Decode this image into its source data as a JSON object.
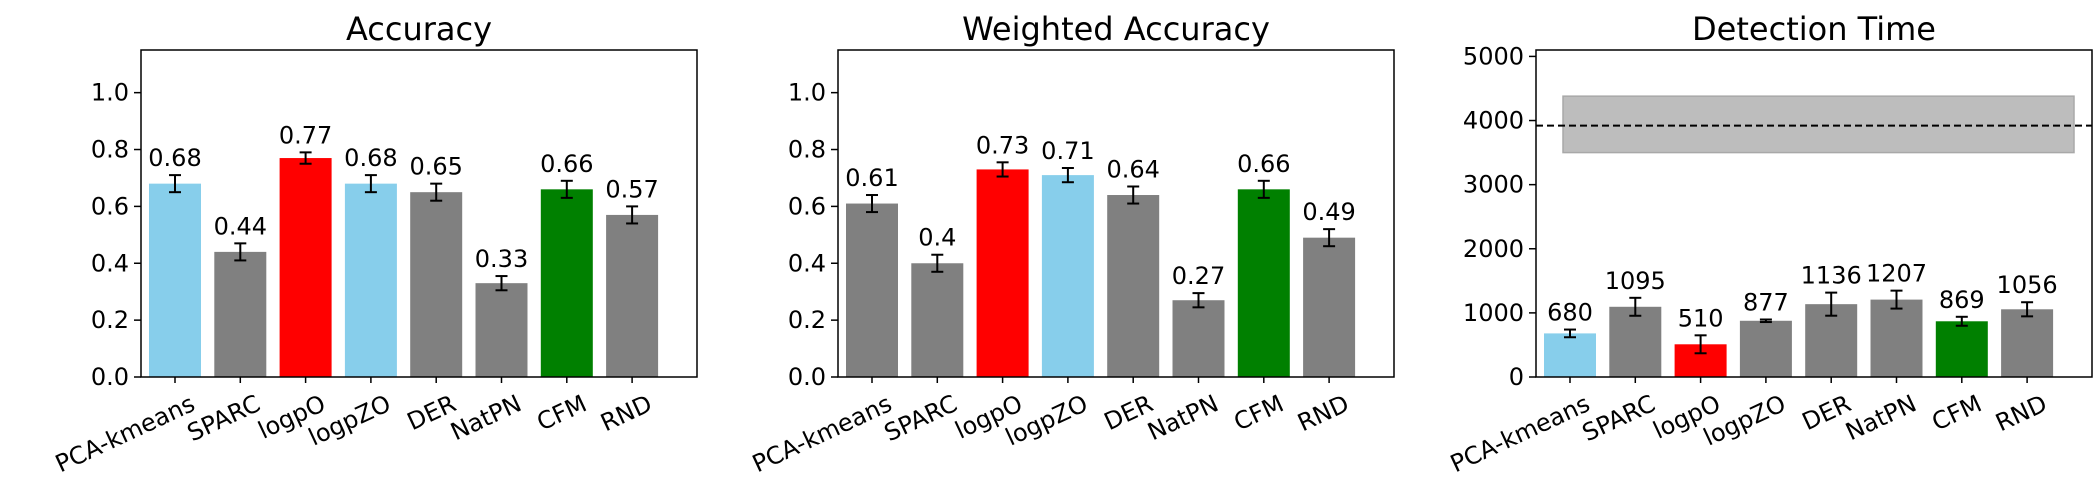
{
  "colors": {
    "default": "#808080",
    "highlight_blue": "#87ceeb",
    "highlight_red": "#ff0000",
    "highlight_green": "#008000",
    "band": "#bdbdbd"
  },
  "chart_data": [
    {
      "type": "bar",
      "title": "Accuracy",
      "categories": [
        "PCA-kmeans",
        "SPARC",
        "logpO",
        "logpZO",
        "DER",
        "NatPN",
        "CFM",
        "RND"
      ],
      "values": [
        0.68,
        0.44,
        0.77,
        0.68,
        0.65,
        0.33,
        0.66,
        0.57
      ],
      "data_labels": [
        "0.68",
        "0.44",
        "0.77",
        "0.68",
        "0.65",
        "0.33",
        "0.66",
        "0.57"
      ],
      "errors": [
        0.03,
        0.03,
        0.02,
        0.03,
        0.03,
        0.025,
        0.03,
        0.03
      ],
      "bar_colors": [
        "highlight_blue",
        "default",
        "highlight_red",
        "highlight_blue",
        "default",
        "default",
        "highlight_green",
        "default"
      ],
      "ylim": [
        0,
        1.15
      ],
      "yticks": [
        0.0,
        0.2,
        0.4,
        0.6,
        0.8,
        1.0
      ],
      "ytick_labels": [
        "0.0",
        "0.2",
        "0.4",
        "0.6",
        "0.8",
        "1.0"
      ],
      "grid": false
    },
    {
      "type": "bar",
      "title": "Weighted Accuracy",
      "categories": [
        "PCA-kmeans",
        "SPARC",
        "logpO",
        "logpZO",
        "DER",
        "NatPN",
        "CFM",
        "RND"
      ],
      "values": [
        0.61,
        0.4,
        0.73,
        0.71,
        0.64,
        0.27,
        0.66,
        0.49
      ],
      "data_labels": [
        "0.61",
        "0.4",
        "0.73",
        "0.71",
        "0.64",
        "0.27",
        "0.66",
        "0.49"
      ],
      "errors": [
        0.03,
        0.03,
        0.025,
        0.025,
        0.03,
        0.025,
        0.03,
        0.03
      ],
      "bar_colors": [
        "default",
        "default",
        "highlight_red",
        "highlight_blue",
        "default",
        "default",
        "highlight_green",
        "default"
      ],
      "ylim": [
        0,
        1.15
      ],
      "yticks": [
        0.0,
        0.2,
        0.4,
        0.6,
        0.8,
        1.0
      ],
      "ytick_labels": [
        "0.0",
        "0.2",
        "0.4",
        "0.6",
        "0.8",
        "1.0"
      ],
      "grid": false
    },
    {
      "type": "bar",
      "title": "Detection Time",
      "categories": [
        "PCA-kmeans",
        "SPARC",
        "logpO",
        "logpZO",
        "DER",
        "NatPN",
        "CFM",
        "RND"
      ],
      "values": [
        680,
        1095,
        510,
        877,
        1136,
        1207,
        869,
        1056
      ],
      "data_labels": [
        "680",
        "1095",
        "510",
        "877",
        "1136",
        "1207",
        "869",
        "1056"
      ],
      "errors": [
        60,
        140,
        140,
        20,
        180,
        140,
        70,
        110
      ],
      "bar_colors": [
        "highlight_blue",
        "default",
        "highlight_red",
        "default",
        "default",
        "default",
        "highlight_green",
        "default"
      ],
      "ylim": [
        0,
        5100
      ],
      "yticks": [
        0,
        1000,
        2000,
        3000,
        4000,
        5000
      ],
      "ytick_labels": [
        "0",
        "1000",
        "2000",
        "3000",
        "4000",
        "5000"
      ],
      "reference_line": 3920,
      "reference_band": [
        3500,
        4380
      ],
      "grid": false
    }
  ]
}
